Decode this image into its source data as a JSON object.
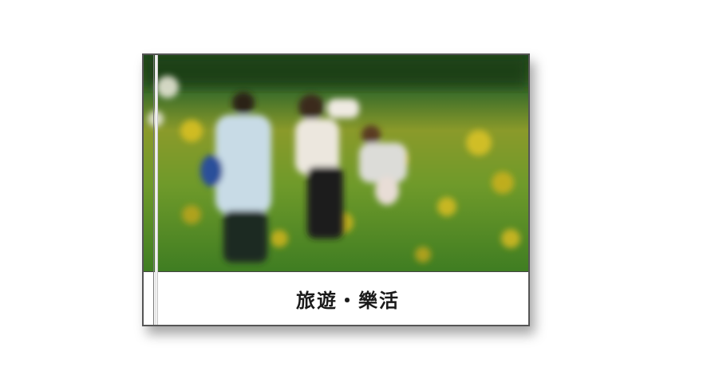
{
  "card": {
    "caption": "旅遊・樂活"
  },
  "photo": {
    "description_icon": "people-in-flower-field-photo"
  },
  "colors": {
    "card_border": "#555555",
    "caption_text": "#1a1a1a",
    "grass": "#4f8a2a",
    "flowers": "#c9b21c"
  }
}
